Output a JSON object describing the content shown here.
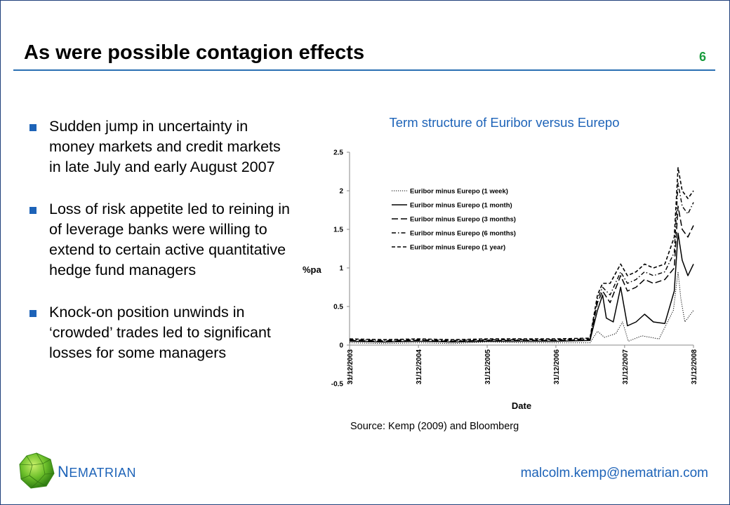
{
  "slide": {
    "title": "As were possible contagion effects",
    "number": "6",
    "bullets": [
      "Sudden jump in uncertainty in money markets and credit markets in late July and early August 2007",
      "Loss of risk appetite led to reining in of leverage banks were willing to extend to certain active quantitative hedge fund managers",
      "Knock-on position unwinds in ‘crowded’ trades led to significant losses for some managers"
    ],
    "source": "Source: Kemp (2009) and Bloomberg",
    "brand_initial": "N",
    "brand_rest": "EMATRIAN",
    "email": "malcolm.kemp@nematrian.com"
  },
  "colors": {
    "accent": "#1d63b8",
    "slide_number": "#1a9c3e",
    "title_rule": "#2a6fb3"
  },
  "chart_data": {
    "type": "line",
    "title": "Term structure of Euribor versus Eurepo",
    "xlabel": "Date",
    "ylabel": "%pa",
    "ylim": [
      -0.5,
      2.5
    ],
    "yticks": [
      "-0.5",
      "0",
      "0.5",
      "1",
      "1.5",
      "2",
      "2.5"
    ],
    "xticks": [
      "31/12/2003",
      "31/12/2004",
      "31/12/2005",
      "31/12/2006",
      "31/12/2007",
      "31/12/2008"
    ],
    "xrange": [
      "2003-12-31",
      "2008-12-31"
    ],
    "legend_position": "upper-left",
    "series": [
      {
        "name": "Euribor minus Eurepo (1 week)",
        "dash": "dotted",
        "points": [
          [
            "2003-12-31",
            0.03
          ],
          [
            "2004-06-30",
            0.02
          ],
          [
            "2004-12-31",
            0.03
          ],
          [
            "2005-06-30",
            0.02
          ],
          [
            "2005-12-31",
            0.04
          ],
          [
            "2006-06-30",
            0.03
          ],
          [
            "2006-12-31",
            0.03
          ],
          [
            "2007-06-30",
            0.03
          ],
          [
            "2007-08-09",
            0.18
          ],
          [
            "2007-09-15",
            0.1
          ],
          [
            "2007-11-15",
            0.15
          ],
          [
            "2007-12-20",
            0.3
          ],
          [
            "2008-01-20",
            0.05
          ],
          [
            "2008-04-01",
            0.12
          ],
          [
            "2008-07-01",
            0.08
          ],
          [
            "2008-09-15",
            0.45
          ],
          [
            "2008-10-10",
            0.95
          ],
          [
            "2008-10-25",
            0.6
          ],
          [
            "2008-11-15",
            0.3
          ],
          [
            "2008-12-31",
            0.45
          ]
        ]
      },
      {
        "name": "Euribor minus Eurepo (1 month)",
        "dash": "solid",
        "points": [
          [
            "2003-12-31",
            0.05
          ],
          [
            "2004-06-30",
            0.04
          ],
          [
            "2004-12-31",
            0.05
          ],
          [
            "2005-06-30",
            0.04
          ],
          [
            "2005-12-31",
            0.05
          ],
          [
            "2006-06-30",
            0.05
          ],
          [
            "2006-12-31",
            0.05
          ],
          [
            "2007-06-30",
            0.06
          ],
          [
            "2007-08-09",
            0.45
          ],
          [
            "2007-09-05",
            0.65
          ],
          [
            "2007-09-25",
            0.35
          ],
          [
            "2007-11-01",
            0.3
          ],
          [
            "2007-12-10",
            0.75
          ],
          [
            "2008-01-15",
            0.25
          ],
          [
            "2008-03-01",
            0.3
          ],
          [
            "2008-04-15",
            0.4
          ],
          [
            "2008-06-01",
            0.3
          ],
          [
            "2008-08-01",
            0.28
          ],
          [
            "2008-09-20",
            0.7
          ],
          [
            "2008-10-10",
            1.45
          ],
          [
            "2008-11-01",
            1.1
          ],
          [
            "2008-12-01",
            0.9
          ],
          [
            "2008-12-31",
            1.05
          ]
        ]
      },
      {
        "name": "Euribor minus Eurepo (3 months)",
        "dash": "long-dash",
        "points": [
          [
            "2003-12-31",
            0.06
          ],
          [
            "2004-06-30",
            0.05
          ],
          [
            "2004-12-31",
            0.06
          ],
          [
            "2005-06-30",
            0.05
          ],
          [
            "2005-12-31",
            0.06
          ],
          [
            "2006-06-30",
            0.06
          ],
          [
            "2006-12-31",
            0.06
          ],
          [
            "2007-06-30",
            0.07
          ],
          [
            "2007-08-09",
            0.55
          ],
          [
            "2007-09-05",
            0.7
          ],
          [
            "2007-10-15",
            0.55
          ],
          [
            "2007-12-10",
            0.9
          ],
          [
            "2008-01-15",
            0.7
          ],
          [
            "2008-03-01",
            0.75
          ],
          [
            "2008-04-15",
            0.85
          ],
          [
            "2008-06-01",
            0.8
          ],
          [
            "2008-08-01",
            0.85
          ],
          [
            "2008-09-20",
            1.0
          ],
          [
            "2008-10-10",
            1.8
          ],
          [
            "2008-11-01",
            1.5
          ],
          [
            "2008-12-01",
            1.4
          ],
          [
            "2008-12-31",
            1.55
          ]
        ]
      },
      {
        "name": "Euribor minus Eurepo (6 months)",
        "dash": "dash-dot",
        "points": [
          [
            "2003-12-31",
            0.07
          ],
          [
            "2004-06-30",
            0.06
          ],
          [
            "2004-12-31",
            0.07
          ],
          [
            "2005-06-30",
            0.06
          ],
          [
            "2005-12-31",
            0.07
          ],
          [
            "2006-06-30",
            0.07
          ],
          [
            "2006-12-31",
            0.07
          ],
          [
            "2007-06-30",
            0.08
          ],
          [
            "2007-08-09",
            0.6
          ],
          [
            "2007-09-05",
            0.75
          ],
          [
            "2007-10-15",
            0.65
          ],
          [
            "2007-12-10",
            0.95
          ],
          [
            "2008-01-15",
            0.8
          ],
          [
            "2008-03-01",
            0.85
          ],
          [
            "2008-04-15",
            0.95
          ],
          [
            "2008-06-01",
            0.9
          ],
          [
            "2008-08-01",
            0.95
          ],
          [
            "2008-09-20",
            1.2
          ],
          [
            "2008-10-10",
            2.1
          ],
          [
            "2008-11-01",
            1.8
          ],
          [
            "2008-12-01",
            1.7
          ],
          [
            "2008-12-31",
            1.85
          ]
        ]
      },
      {
        "name": "Euribor minus Eurepo (1 year)",
        "dash": "dashed",
        "points": [
          [
            "2003-12-31",
            0.08
          ],
          [
            "2004-06-30",
            0.07
          ],
          [
            "2004-12-31",
            0.08
          ],
          [
            "2005-06-30",
            0.07
          ],
          [
            "2005-12-31",
            0.08
          ],
          [
            "2006-06-30",
            0.08
          ],
          [
            "2006-12-31",
            0.08
          ],
          [
            "2007-06-30",
            0.09
          ],
          [
            "2007-08-09",
            0.65
          ],
          [
            "2007-09-05",
            0.8
          ],
          [
            "2007-10-15",
            0.8
          ],
          [
            "2007-12-10",
            1.05
          ],
          [
            "2008-01-15",
            0.9
          ],
          [
            "2008-03-01",
            0.95
          ],
          [
            "2008-04-15",
            1.05
          ],
          [
            "2008-06-01",
            1.0
          ],
          [
            "2008-08-01",
            1.05
          ],
          [
            "2008-09-20",
            1.4
          ],
          [
            "2008-10-10",
            2.3
          ],
          [
            "2008-11-01",
            2.0
          ],
          [
            "2008-12-01",
            1.9
          ],
          [
            "2008-12-31",
            2.0
          ]
        ]
      }
    ]
  }
}
